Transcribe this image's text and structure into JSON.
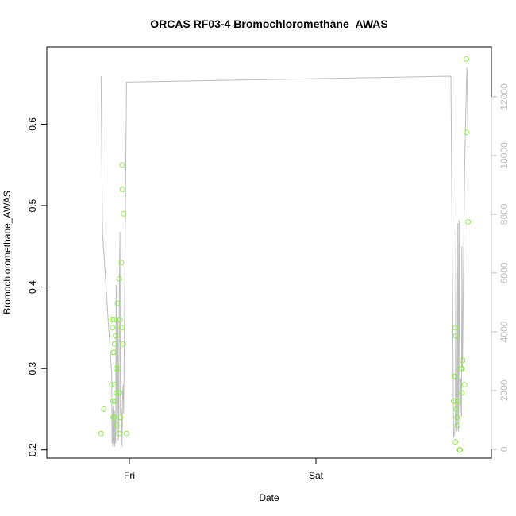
{
  "chart_data": {
    "type": "scatter",
    "title": "ORCAS RF03-4 Bromochloromethane_AWAS",
    "xlabel": "Date",
    "ylabel": "Bromochloromethane_AWAS",
    "x_ticks": [
      "Fri",
      "Sat"
    ],
    "y_ticks": [
      "0.2",
      "0.3",
      "0.4",
      "0.5",
      "0.6"
    ],
    "y2_ticks": [
      "0",
      "2000",
      "4000",
      "6000",
      "8000",
      "10000",
      "12000"
    ],
    "ylim": [
      0.19,
      0.695
    ],
    "y2lim": [
      -300,
      13700
    ],
    "grid": false,
    "legend": "none",
    "colors": {
      "points": "#90ee50",
      "line": "#bebebe",
      "axis": "#000000",
      "axis_right": "#bebebe"
    },
    "points": {
      "name": "Bromochloromethane_AWAS",
      "x": [
        "Thu 20:21",
        "Thu 20:43",
        "Thu 21:44",
        "Thu 21:46",
        "Thu 21:48",
        "Thu 21:51",
        "Thu 21:53",
        "Thu 21:55",
        "Thu 21:57",
        "Thu 21:59",
        "Thu 22:01",
        "Thu 22:03",
        "Thu 22:05",
        "Thu 22:07",
        "Thu 22:09",
        "Thu 22:14",
        "Thu 22:18",
        "Thu 22:20",
        "Thu 22:24",
        "Thu 22:28",
        "Thu 22:32",
        "Thu 22:35",
        "Thu 22:39",
        "Thu 22:41",
        "Thu 22:43",
        "Thu 22:47",
        "Thu 22:51",
        "Thu 22:58",
        "Thu 23:02",
        "Thu 23:04",
        "Thu 23:06",
        "Thu 23:12",
        "Thu 23:16",
        "Thu 23:38",
        "Sat 17:43",
        "Sat 17:52",
        "Sat 17:54",
        "Sat 17:56",
        "Sat 17:58",
        "Sat 18:00",
        "Sat 18:04",
        "Sat 18:09",
        "Sat 18:13",
        "Sat 18:15",
        "Sat 18:18",
        "Sat 18:28",
        "Sat 18:32",
        "Sat 18:38",
        "Sat 18:43",
        "Sat 18:45",
        "Sat 18:47",
        "Sat 18:51",
        "Sat 19:08",
        "Sat 19:21"
      ],
      "y": [
        0.22,
        0.25,
        0.28,
        0.36,
        0.36,
        0.35,
        0.26,
        0.24,
        0.32,
        0.32,
        0.36,
        0.24,
        0.33,
        0.28,
        0.26,
        0.34,
        0.3,
        0.27,
        0.23,
        0.38,
        0.3,
        0.27,
        0.22,
        0.41,
        0.27,
        0.36,
        0.24,
        0.43,
        0.35,
        0.55,
        0.52,
        0.33,
        0.49,
        0.22,
        0.26,
        0.29,
        0.29,
        0.21,
        0.35,
        0.34,
        0.25,
        0.24,
        0.26,
        0.23,
        0.26,
        0.2,
        0.2,
        0.3,
        0.3,
        0.27,
        0.3,
        0.31,
        0.28,
        0.68
      ]
    },
    "extra_points": {
      "x": [
        "Sat 19:21",
        "Sat 19:34"
      ],
      "y": [
        0.59,
        0.48
      ]
    },
    "line": {
      "axis": "right",
      "x": [
        "Thu 20:21",
        "Thu 20:32",
        "Thu 21:44",
        "Thu 21:46",
        "Thu 21:48",
        "Thu 21:51",
        "Thu 21:53",
        "Thu 21:55",
        "Thu 21:57",
        "Thu 21:59",
        "Thu 22:01",
        "Thu 22:03",
        "Thu 22:05",
        "Thu 22:07",
        "Thu 22:09",
        "Thu 22:14",
        "Thu 22:18",
        "Thu 22:20",
        "Thu 22:24",
        "Thu 22:28",
        "Thu 22:32",
        "Thu 22:35",
        "Thu 22:39",
        "Thu 22:43",
        "Thu 22:47",
        "Thu 22:51",
        "Thu 22:58",
        "Thu 23:04",
        "Thu 23:08",
        "Thu 23:12",
        "Thu 23:16",
        "Thu 23:38",
        "Sat 17:22",
        "Sat 17:43",
        "Sat 17:52",
        "Sat 17:56",
        "Sat 18:00",
        "Sat 18:04",
        "Sat 18:09",
        "Sat 18:13",
        "Sat 18:15",
        "Sat 18:18",
        "Sat 18:21",
        "Sat 18:25",
        "Sat 18:28",
        "Sat 18:32",
        "Sat 18:38",
        "Sat 18:43",
        "Sat 18:47",
        "Sat 18:51",
        "Sat 19:08",
        "Sat 19:21",
        "Sat 19:26",
        "Sat 19:34"
      ],
      "y": [
        12700,
        7400,
        2500,
        200,
        1200,
        100,
        1400,
        200,
        1500,
        800,
        1300,
        300,
        1300,
        100,
        1000,
        200,
        5600,
        4000,
        600,
        1800,
        4500,
        300,
        1000,
        5600,
        7400,
        1200,
        1400,
        100,
        2000,
        2200,
        1200,
        12500,
        12700,
        400,
        600,
        1200,
        7500,
        4800,
        600,
        1300,
        7700,
        4900,
        600,
        7800,
        4800,
        900,
        2400,
        1100,
        6900,
        2800,
        9600,
        12400,
        13000,
        10300
      ]
    }
  }
}
